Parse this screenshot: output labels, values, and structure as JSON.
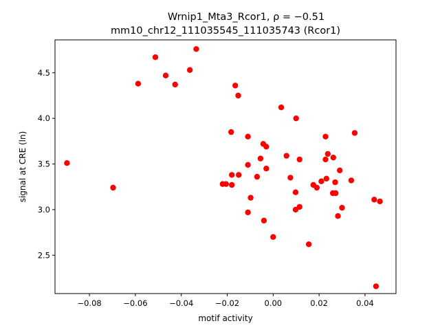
{
  "chart_data": {
    "type": "scatter",
    "title_line1": "Wrnip1_Mta3_Rcor1, ρ = −0.51",
    "title_line2": "mm10_chr12_111035545_111035743 (Rcor1)",
    "xlabel": "motif activity",
    "ylabel": "signal at CRE (ln)",
    "xlim": [
      -0.095,
      0.0535
    ],
    "ylim": [
      2.08,
      4.86
    ],
    "xticks": [
      -0.08,
      -0.06,
      -0.04,
      -0.02,
      0.0,
      0.02,
      0.04
    ],
    "xtick_labels": [
      "−0.08",
      "−0.06",
      "−0.04",
      "−0.02",
      "0.00",
      "0.02",
      "0.04"
    ],
    "yticks": [
      2.5,
      3.0,
      3.5,
      4.0,
      4.5
    ],
    "ytick_labels": [
      "2.5",
      "3.0",
      "3.5",
      "4.0",
      "4.5"
    ],
    "grid": false,
    "point_color": "#ff0000",
    "points": [
      [
        -0.0898,
        3.51
      ],
      [
        -0.0697,
        3.24
      ],
      [
        -0.0588,
        4.38
      ],
      [
        -0.0513,
        4.67
      ],
      [
        -0.0468,
        4.47
      ],
      [
        -0.0427,
        4.37
      ],
      [
        -0.0363,
        4.53
      ],
      [
        -0.0335,
        4.76
      ],
      [
        -0.022,
        3.28
      ],
      [
        -0.0205,
        3.28
      ],
      [
        -0.0183,
        3.85
      ],
      [
        -0.018,
        3.38
      ],
      [
        -0.018,
        3.27
      ],
      [
        -0.0165,
        4.36
      ],
      [
        -0.0152,
        4.25
      ],
      [
        -0.015,
        3.38
      ],
      [
        -0.011,
        3.8
      ],
      [
        -0.011,
        3.49
      ],
      [
        -0.011,
        2.97
      ],
      [
        -0.0098,
        3.13
      ],
      [
        -0.007,
        3.36
      ],
      [
        -0.0055,
        3.56
      ],
      [
        -0.0043,
        3.72
      ],
      [
        -0.004,
        2.88
      ],
      [
        -0.003,
        3.69
      ],
      [
        -0.003,
        3.45
      ],
      [
        0.0,
        2.7
      ],
      [
        0.0035,
        4.12
      ],
      [
        0.0058,
        3.59
      ],
      [
        0.0075,
        3.35
      ],
      [
        0.01,
        4.0
      ],
      [
        0.0098,
        3.19
      ],
      [
        0.0098,
        3.0
      ],
      [
        0.0115,
        3.55
      ],
      [
        0.0115,
        3.03
      ],
      [
        0.0155,
        2.62
      ],
      [
        0.0175,
        3.27
      ],
      [
        0.019,
        3.24
      ],
      [
        0.021,
        3.31
      ],
      [
        0.0228,
        3.8
      ],
      [
        0.0228,
        3.55
      ],
      [
        0.0232,
        3.34
      ],
      [
        0.0238,
        3.61
      ],
      [
        0.0262,
        3.57
      ],
      [
        0.026,
        3.18
      ],
      [
        0.027,
        3.3
      ],
      [
        0.0272,
        3.18
      ],
      [
        0.0282,
        2.93
      ],
      [
        0.029,
        3.43
      ],
      [
        0.03,
        3.02
      ],
      [
        0.034,
        3.32
      ],
      [
        0.0355,
        3.84
      ],
      [
        0.044,
        3.11
      ],
      [
        0.0448,
        2.16
      ],
      [
        0.0465,
        3.09
      ]
    ]
  }
}
